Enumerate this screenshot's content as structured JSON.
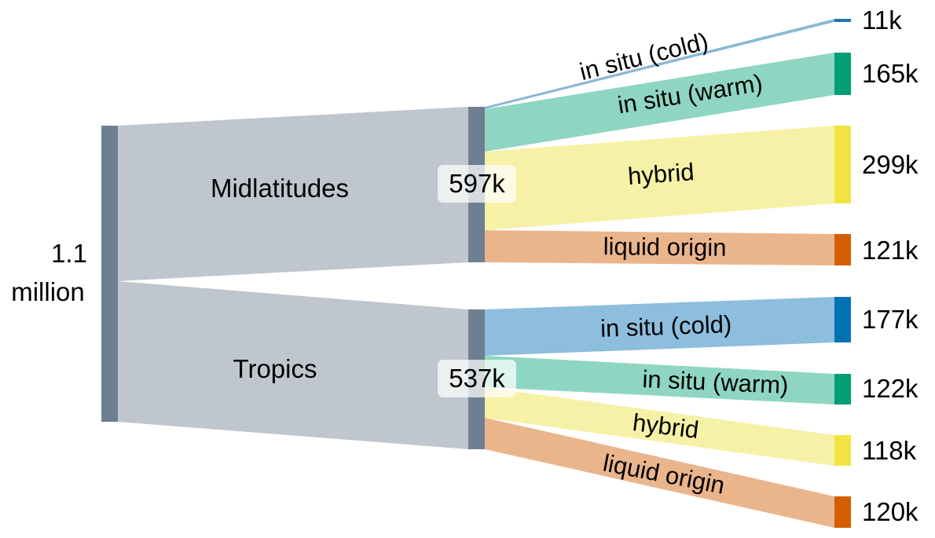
{
  "chart_data": {
    "type": "sankey",
    "root": {
      "label_line1": "1.1",
      "label_line2": "million"
    },
    "groups": [
      {
        "name": "Midlatitudes",
        "total_label": "597k",
        "flows": [
          {
            "label": "in situ (cold)",
            "value_label": "11k",
            "color": "#1f77b4"
          },
          {
            "label": "in situ (warm)",
            "value_label": "165k",
            "color": "#009e73"
          },
          {
            "label": "hybrid",
            "value_label": "299k",
            "color": "#f0e442"
          },
          {
            "label": "liquid origin",
            "value_label": "121k",
            "color": "#d55e00"
          }
        ]
      },
      {
        "name": "Tropics",
        "total_label": "537k",
        "flows": [
          {
            "label": "in situ (cold)",
            "value_label": "177k",
            "color": "#0072b2"
          },
          {
            "label": "in situ (warm)",
            "value_label": "122k",
            "color": "#009e73"
          },
          {
            "label": "hybrid",
            "value_label": "118k",
            "color": "#f0e442"
          },
          {
            "label": "liquid origin",
            "value_label": "120k",
            "color": "#d55e00"
          }
        ]
      }
    ],
    "colors": {
      "node": "#6e7f91",
      "group_link": "#bfc6ce",
      "cold_link_mid": "#8ab8d6",
      "cold_link_trop": "#8dbedd",
      "warm_link": "#8fd6c2",
      "hybrid_link": "#f6f1a6",
      "liquid_link": "#ebb58c"
    }
  }
}
